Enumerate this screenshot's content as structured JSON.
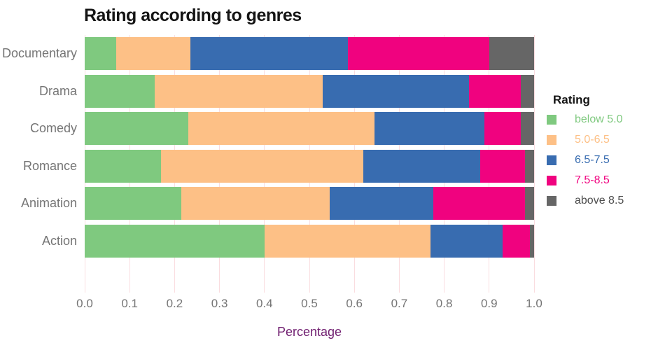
{
  "title": "Rating according to genres",
  "x_axis": {
    "label": "Percentage",
    "label_color": "#6f1d6f",
    "tick_color": "#757575"
  },
  "y_axis": {
    "label_color": "#757575"
  },
  "legend": {
    "title": "Rating",
    "position": "right"
  },
  "grid_color": "#fadde0",
  "chart_data": {
    "type": "bar",
    "orientation": "horizontal-stacked",
    "title": "Rating according to genres",
    "xlabel": "Percentage",
    "ylabel": "",
    "legend_title": "Rating",
    "legend_position": "right",
    "grid": "vertical light-pink gridlines",
    "xlim": [
      0.0,
      1.0
    ],
    "x_ticks": [
      "0.0",
      "0.1",
      "0.2",
      "0.3",
      "0.4",
      "0.5",
      "0.6",
      "0.7",
      "0.8",
      "0.9",
      "1.0"
    ],
    "categories": [
      "Documentary",
      "Drama",
      "Comedy",
      "Romance",
      "Animation",
      "Action"
    ],
    "series": [
      {
        "name": "below 5.0",
        "color": "#7FC97F",
        "label_color": "#7FC97F",
        "values": [
          0.07,
          0.155,
          0.23,
          0.17,
          0.215,
          0.4
        ]
      },
      {
        "name": "5.0-6.5",
        "color": "#FDC086",
        "label_color": "#FDC086",
        "values": [
          0.165,
          0.375,
          0.415,
          0.45,
          0.33,
          0.37
        ]
      },
      {
        "name": "6.5-7.5",
        "color": "#386CB0",
        "label_color": "#386CB0",
        "values": [
          0.35,
          0.325,
          0.245,
          0.26,
          0.23,
          0.16
        ]
      },
      {
        "name": "7.5-8.5",
        "color": "#F0027F",
        "label_color": "#F0027F",
        "values": [
          0.315,
          0.115,
          0.08,
          0.1,
          0.205,
          0.06
        ]
      },
      {
        "name": "above 8.5",
        "color": "#666666",
        "label_color": "#4d4d4d",
        "values": [
          0.1,
          0.03,
          0.03,
          0.02,
          0.02,
          0.01
        ]
      }
    ]
  }
}
